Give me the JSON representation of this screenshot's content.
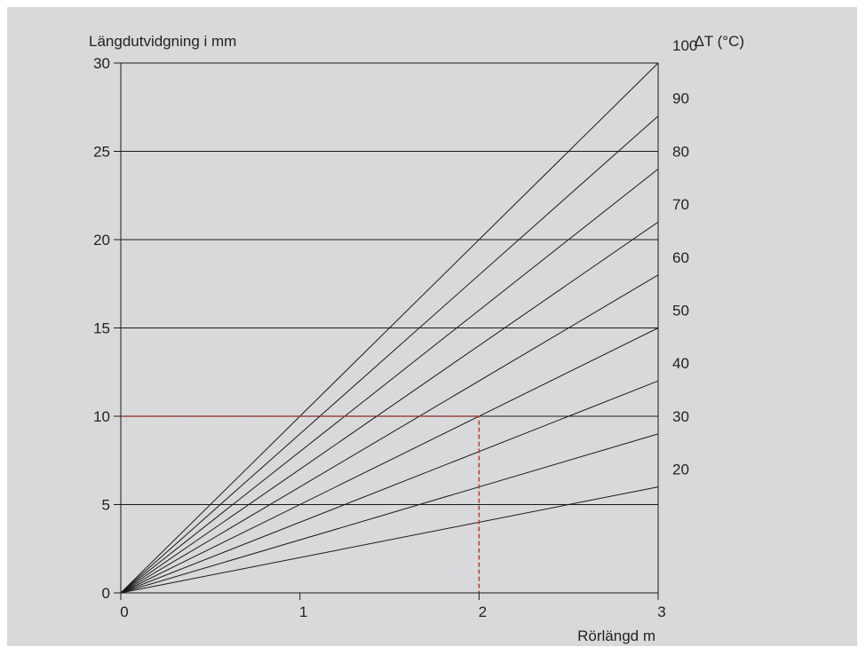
{
  "chart_data": {
    "type": "line",
    "title": "",
    "ylabel": "Längdutvidgning i mm",
    "xlabel": "Rörlängd m",
    "right_label": "ΔT (°C)",
    "xlim": [
      0,
      3
    ],
    "ylim": [
      0,
      30
    ],
    "x_ticks": [
      0,
      1,
      2,
      3
    ],
    "y_ticks": [
      0,
      5,
      10,
      15,
      20,
      25,
      30
    ],
    "grid": "horizontal",
    "series": [
      {
        "name": "100",
        "x": [
          0,
          3
        ],
        "y": [
          0,
          30
        ]
      },
      {
        "name": "90",
        "x": [
          0,
          3
        ],
        "y": [
          0,
          27
        ]
      },
      {
        "name": "80",
        "x": [
          0,
          3
        ],
        "y": [
          0,
          24
        ]
      },
      {
        "name": "70",
        "x": [
          0,
          3
        ],
        "y": [
          0,
          21
        ]
      },
      {
        "name": "60",
        "x": [
          0,
          3
        ],
        "y": [
          0,
          18
        ]
      },
      {
        "name": "50",
        "x": [
          0,
          3
        ],
        "y": [
          0,
          15
        ]
      },
      {
        "name": "40",
        "x": [
          0,
          3
        ],
        "y": [
          0,
          12
        ]
      },
      {
        "name": "30",
        "x": [
          0,
          3
        ],
        "y": [
          0,
          9
        ]
      },
      {
        "name": "20",
        "x": [
          0,
          3
        ],
        "y": [
          0,
          6
        ]
      }
    ],
    "guide": {
      "x": 2,
      "y": 10,
      "style": "dashed",
      "color": "#c0392b"
    },
    "colors": {
      "line": "#1a1a1a",
      "background": "#d9d9db",
      "guide": "#c0392b"
    }
  }
}
